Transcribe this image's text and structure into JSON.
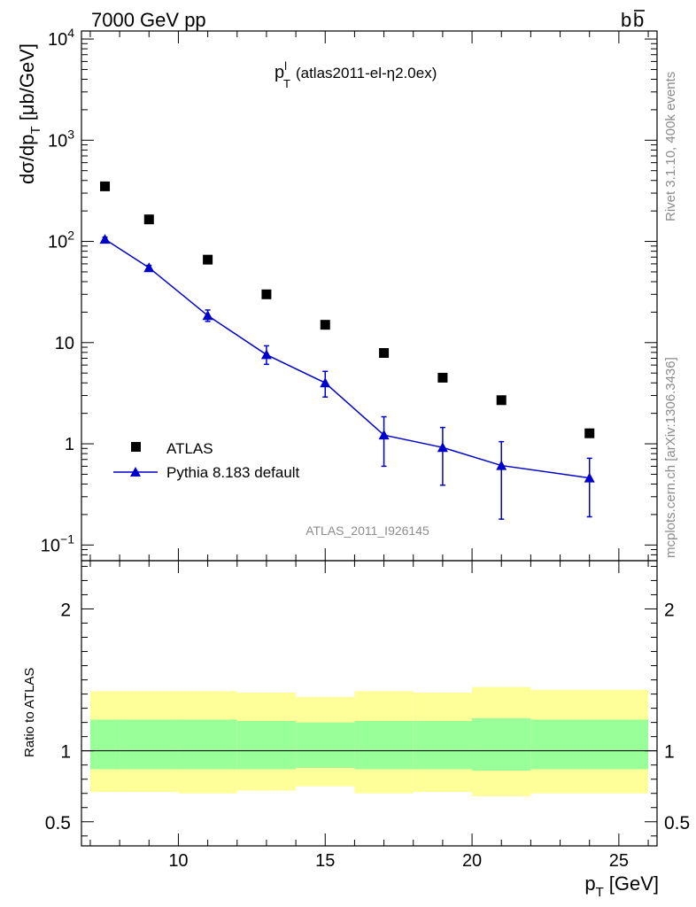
{
  "header": {
    "left": "7000 GeV pp",
    "right": "b",
    "right_bar": "b"
  },
  "side_labels": {
    "rivet": "Rivet 3.1.10,  400k events",
    "mcplots": "mcplots.cern.ch [arXiv:1306.3436]"
  },
  "watermark": "ATLAS_2011_I926145",
  "chart_data": [
    {
      "type": "line",
      "title": {
        "var": "p",
        "sup": "l",
        "sub": "T",
        "desc": "(atlas2011-el-η2.0ex)"
      },
      "ylabel": {
        "pre": "dσ/dp",
        "sub": "T",
        "post": " [μb/GeV]"
      },
      "yscale": "log",
      "ylim": [
        0.07,
        12000
      ],
      "xlim": [
        6.7,
        26.3
      ],
      "y_tick_labels": [
        {
          "value": 0.1,
          "base": "10",
          "exp": "−1"
        },
        {
          "value": 1,
          "text": "1"
        },
        {
          "value": 10,
          "text": "10"
        },
        {
          "value": 100,
          "base": "10",
          "exp": "2"
        },
        {
          "value": 1000,
          "base": "10",
          "exp": "3"
        },
        {
          "value": 10000,
          "base": "10",
          "exp": "4"
        }
      ],
      "legend": {
        "placement": "bottom-left",
        "entries": [
          "ATLAS",
          "Pythia 8.183 default"
        ]
      },
      "series": [
        {
          "name": "ATLAS",
          "marker": "square",
          "color": "#000000",
          "x": [
            7.5,
            9,
            11,
            13,
            15,
            17,
            19,
            21,
            24
          ],
          "y": [
            350,
            165,
            66,
            30,
            15,
            7.9,
            4.5,
            2.7,
            1.27
          ]
        },
        {
          "name": "Pythia 8.183 default",
          "marker": "triangle",
          "color": "#0000cc",
          "x": [
            7.5,
            9,
            11,
            13,
            15,
            17,
            19,
            21,
            24
          ],
          "y": [
            105,
            55,
            18.5,
            7.6,
            4.0,
            1.22,
            0.92,
            0.61,
            0.46
          ],
          "y_err_low": [
            100,
            52,
            16.2,
            6.1,
            2.9,
            0.6,
            0.39,
            0.18,
            0.19
          ],
          "y_err_high": [
            110,
            58,
            21,
            9.3,
            5.2,
            1.85,
            1.45,
            1.05,
            0.72
          ]
        }
      ]
    },
    {
      "type": "area",
      "ylabel": "Ratio to ATLAS",
      "xlabel": {
        "var": "p",
        "sub": "T",
        "unit": "[GeV]"
      },
      "xlim": [
        6.7,
        26.3
      ],
      "ylim": [
        0.33,
        2.34
      ],
      "x_ticks": [
        10,
        15,
        20,
        25
      ],
      "y_ticks": [
        0.5,
        1,
        2
      ],
      "reference_line": 1,
      "bands": {
        "edges": [
          7,
          8,
          10,
          12,
          14,
          16,
          18,
          20,
          22,
          26
        ],
        "stat_color": "#99ff99",
        "total_color": "#ffff99",
        "stat_low": [
          0.87,
          0.87,
          0.87,
          0.87,
          0.88,
          0.87,
          0.87,
          0.86,
          0.87
        ],
        "stat_high": [
          1.22,
          1.22,
          1.22,
          1.21,
          1.2,
          1.21,
          1.21,
          1.23,
          1.22
        ],
        "total_low": [
          0.71,
          0.71,
          0.7,
          0.72,
          0.75,
          0.7,
          0.71,
          0.68,
          0.7
        ],
        "total_high": [
          1.42,
          1.42,
          1.42,
          1.41,
          1.38,
          1.42,
          1.41,
          1.45,
          1.43
        ]
      }
    }
  ]
}
